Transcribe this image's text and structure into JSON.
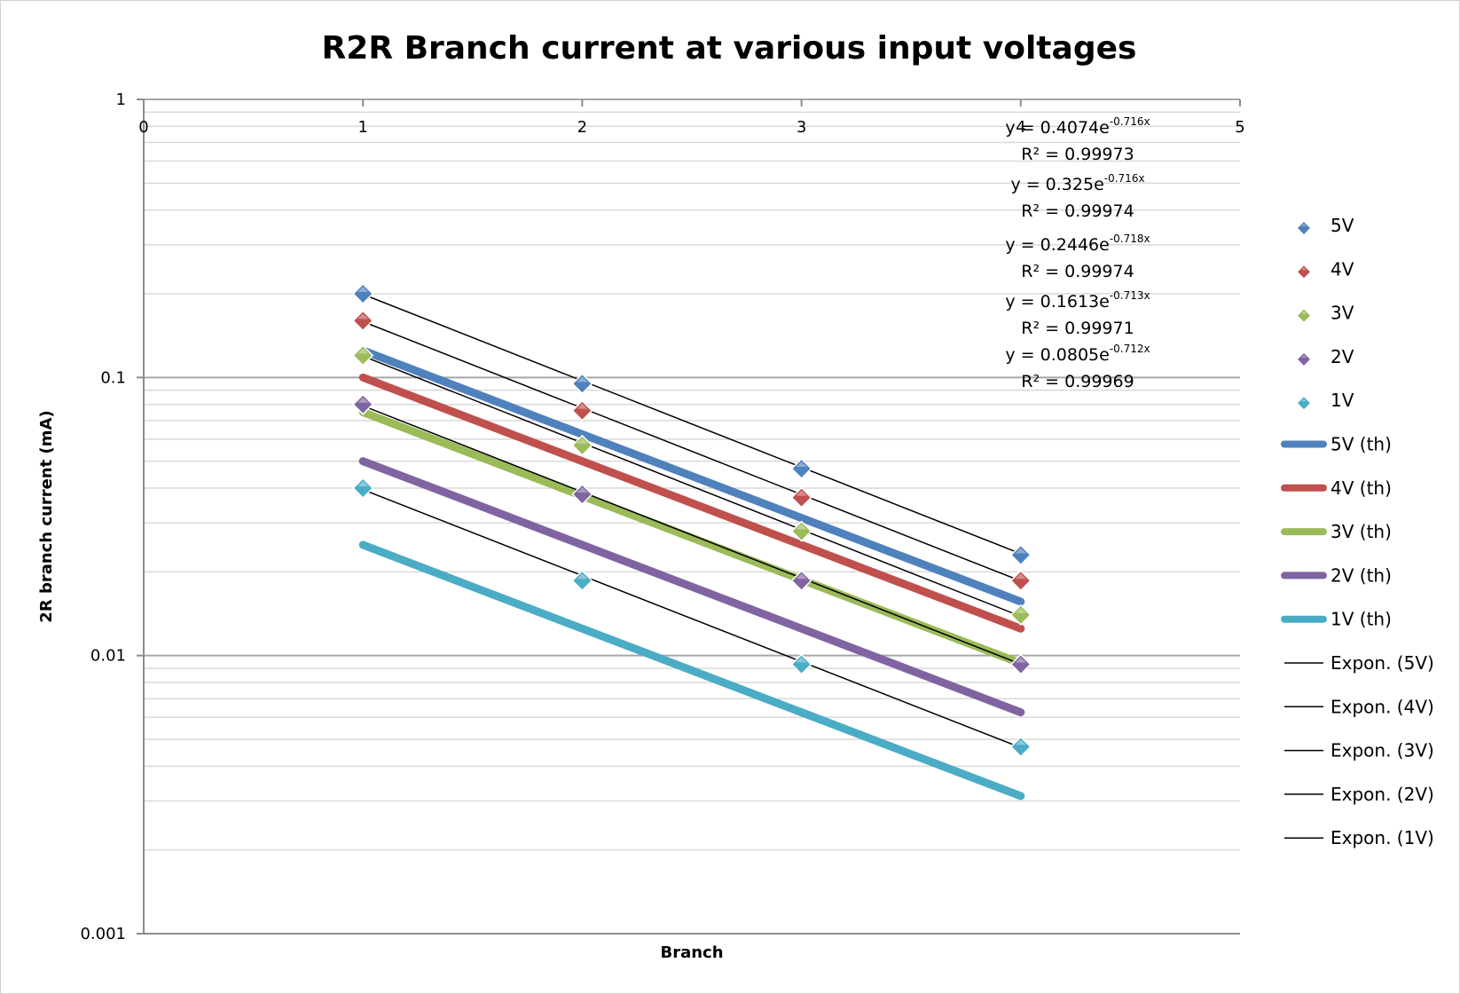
{
  "chart_data": {
    "type": "scatter",
    "title": "R2R Branch current at various input voltages",
    "xlabel": "Branch",
    "ylabel": "2R branch current (mA)",
    "xlim": [
      0,
      5
    ],
    "ylim": [
      0.001,
      1
    ],
    "y_scale": "log",
    "x_ticks": [
      "0",
      "1",
      "2",
      "3",
      "4",
      "5"
    ],
    "y_ticks": [
      "0.001",
      "0.01",
      "0.1",
      "1"
    ],
    "grid": true,
    "legend_position": "right",
    "series": [
      {
        "name": "5V",
        "kind": "markers",
        "color": "#4f81bd",
        "x": [
          1,
          2,
          3,
          4
        ],
        "y": [
          0.2,
          0.095,
          0.047,
          0.023
        ]
      },
      {
        "name": "4V",
        "kind": "markers",
        "color": "#c0504d",
        "x": [
          1,
          2,
          3,
          4
        ],
        "y": [
          0.16,
          0.076,
          0.037,
          0.0186
        ]
      },
      {
        "name": "3V",
        "kind": "markers",
        "color": "#9bbb59",
        "x": [
          1,
          2,
          3,
          4
        ],
        "y": [
          0.12,
          0.057,
          0.028,
          0.014
        ]
      },
      {
        "name": "2V",
        "kind": "markers",
        "color": "#8064a2",
        "x": [
          1,
          2,
          3,
          4
        ],
        "y": [
          0.08,
          0.038,
          0.0186,
          0.0093
        ]
      },
      {
        "name": "1V",
        "kind": "markers",
        "color": "#4bacc6",
        "x": [
          1,
          2,
          3,
          4
        ],
        "y": [
          0.04,
          0.0186,
          0.0093,
          0.0047
        ]
      },
      {
        "name": "5V (th)",
        "kind": "line",
        "color": "#4f81bd",
        "x": [
          1,
          2,
          3,
          4
        ],
        "y": [
          0.125,
          0.0625,
          0.03125,
          0.015625
        ]
      },
      {
        "name": "4V (th)",
        "kind": "line",
        "color": "#c0504d",
        "x": [
          1,
          2,
          3,
          4
        ],
        "y": [
          0.1,
          0.05,
          0.025,
          0.0125
        ]
      },
      {
        "name": "3V (th)",
        "kind": "line",
        "color": "#9bbb59",
        "x": [
          1,
          2,
          3,
          4
        ],
        "y": [
          0.075,
          0.0375,
          0.01875,
          0.009375
        ]
      },
      {
        "name": "2V (th)",
        "kind": "line",
        "color": "#8064a2",
        "x": [
          1,
          2,
          3,
          4
        ],
        "y": [
          0.05,
          0.025,
          0.0125,
          0.00625
        ]
      },
      {
        "name": "1V (th)",
        "kind": "line",
        "color": "#4bacc6",
        "x": [
          1,
          2,
          3,
          4
        ],
        "y": [
          0.025,
          0.0125,
          0.00625,
          0.003125
        ]
      },
      {
        "name": "Expon. (5V)",
        "kind": "trend",
        "color": "#000000",
        "a": 0.4074,
        "b": -0.716,
        "x": [
          1,
          4
        ]
      },
      {
        "name": "Expon. (4V)",
        "kind": "trend",
        "color": "#000000",
        "a": 0.325,
        "b": -0.716,
        "x": [
          1,
          4
        ]
      },
      {
        "name": "Expon. (3V)",
        "kind": "trend",
        "color": "#000000",
        "a": 0.2446,
        "b": -0.718,
        "x": [
          1,
          4
        ]
      },
      {
        "name": "Expon. (2V)",
        "kind": "trend",
        "color": "#000000",
        "a": 0.1613,
        "b": -0.713,
        "x": [
          1,
          4
        ]
      },
      {
        "name": "Expon. (1V)",
        "kind": "trend",
        "color": "#000000",
        "a": 0.0805,
        "b": -0.712,
        "x": [
          1,
          4
        ]
      }
    ],
    "annotations": [
      {
        "base": "y = 0.4074e",
        "exp": "-0.716x",
        "r2": "R² = 0.99973"
      },
      {
        "base": "y = 0.325e",
        "exp": "-0.716x",
        "r2": "R² = 0.99974"
      },
      {
        "base": "y = 0.2446e",
        "exp": "-0.718x",
        "r2": "R² = 0.99974"
      },
      {
        "base": "y = 0.1613e",
        "exp": "-0.713x",
        "r2": "R² = 0.99971"
      },
      {
        "base": "y = 0.0805e",
        "exp": "-0.712x",
        "r2": "R² = 0.99969"
      }
    ]
  }
}
